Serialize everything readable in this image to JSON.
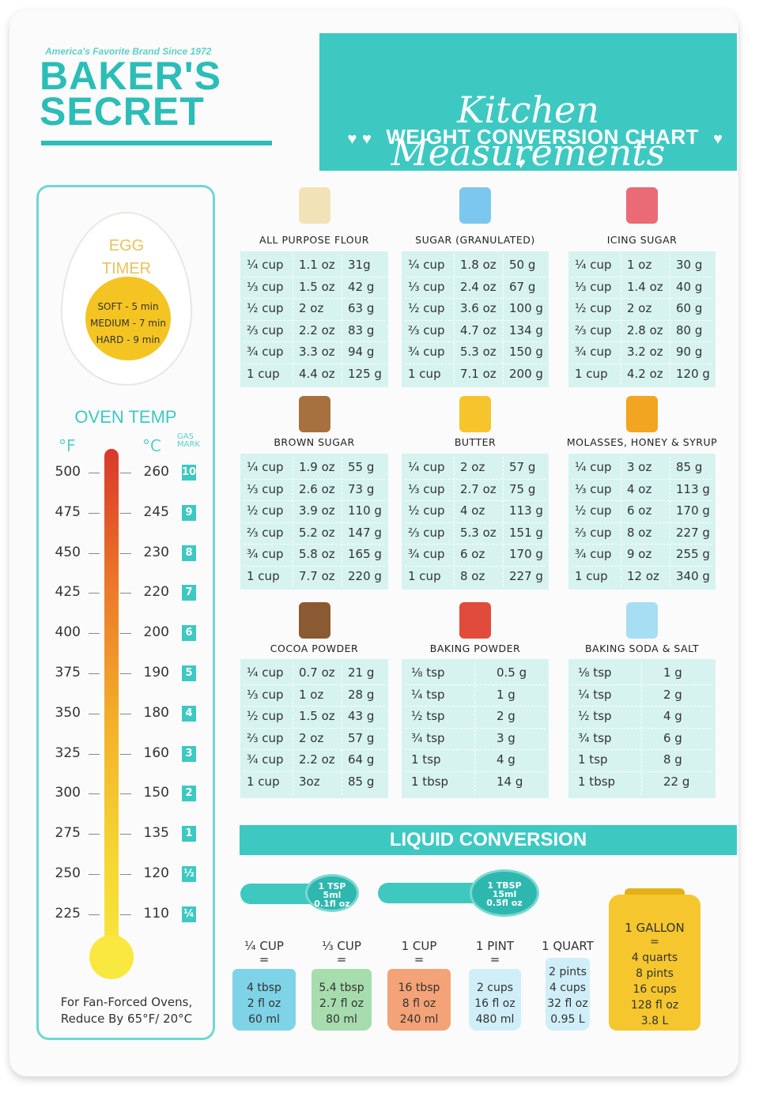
{
  "brand": {
    "tagline": "America's Favorite Brand Since 1972",
    "name_line1": "BAKER'S",
    "name_line2": "SECRET"
  },
  "header": {
    "title": "Kitchen Measurements",
    "subtitle": "WEIGHT CONVERSION CHART",
    "hearts": "♥ ♥"
  },
  "egg_timer": {
    "title_line1": "EGG",
    "title_line2": "TIMER",
    "soft": "SOFT - 5 min",
    "medium": "MEDIUM - 7 min",
    "hard": "HARD - 9 min"
  },
  "oven": {
    "title": "OVEN TEMP",
    "unit_f": "°F",
    "unit_c": "°C",
    "unit_gas": "GAS MARK",
    "rows": [
      {
        "f": "500",
        "c": "260",
        "gas": "10"
      },
      {
        "f": "475",
        "c": "245",
        "gas": "9"
      },
      {
        "f": "450",
        "c": "230",
        "gas": "8"
      },
      {
        "f": "425",
        "c": "220",
        "gas": "7"
      },
      {
        "f": "400",
        "c": "200",
        "gas": "6"
      },
      {
        "f": "375",
        "c": "190",
        "gas": "5"
      },
      {
        "f": "350",
        "c": "180",
        "gas": "4"
      },
      {
        "f": "325",
        "c": "160",
        "gas": "3"
      },
      {
        "f": "300",
        "c": "150",
        "gas": "2"
      },
      {
        "f": "275",
        "c": "135",
        "gas": "1"
      },
      {
        "f": "250",
        "c": "120",
        "gas": "½"
      },
      {
        "f": "225",
        "c": "110",
        "gas": "¼"
      }
    ],
    "note_line1": "For Fan-Forced Ovens,",
    "note_line2": "Reduce By 65°F/ 20°C"
  },
  "sections": [
    {
      "title": "ALL PURPOSE FLOUR",
      "icon": "flour-bag-icon",
      "rows": [
        [
          "¼ cup",
          "1.1 oz",
          "31g"
        ],
        [
          "⅓ cup",
          "1.5 oz",
          "42 g"
        ],
        [
          "½ cup",
          "2 oz",
          "63 g"
        ],
        [
          "⅔ cup",
          "2.2 oz",
          "83 g"
        ],
        [
          "¾ cup",
          "3.3 oz",
          "94 g"
        ],
        [
          "1 cup",
          "4.4 oz",
          "125 g"
        ]
      ]
    },
    {
      "title": "SUGAR (GRANULATED)",
      "icon": "sugar-box-icon",
      "rows": [
        [
          "¼ cup",
          "1.8 oz",
          "50 g"
        ],
        [
          "⅓ cup",
          "2.4 oz",
          "67 g"
        ],
        [
          "½ cup",
          "3.6 oz",
          "100 g"
        ],
        [
          "⅔ cup",
          "4.7 oz",
          "134 g"
        ],
        [
          "¾ cup",
          "5.3 oz",
          "150 g"
        ],
        [
          "1 cup",
          "7.1 oz",
          "200 g"
        ]
      ]
    },
    {
      "title": "ICING SUGAR",
      "icon": "icing-sugar-box-icon",
      "rows": [
        [
          "¼ cup",
          "1 oz",
          "30 g"
        ],
        [
          "⅓ cup",
          "1.4 oz",
          "40 g"
        ],
        [
          "½ cup",
          "2 oz",
          "60 g"
        ],
        [
          "⅔ cup",
          "2.8 oz",
          "80 g"
        ],
        [
          "¾ cup",
          "3.2 oz",
          "90 g"
        ],
        [
          "1 cup",
          "4.2 oz",
          "120 g"
        ]
      ]
    },
    {
      "title": "BROWN SUGAR",
      "icon": "brown-sugar-bag-icon",
      "rows": [
        [
          "¼ cup",
          "1.9 oz",
          "55 g"
        ],
        [
          "⅓ cup",
          "2.6 oz",
          "73 g"
        ],
        [
          "½ cup",
          "3.9 oz",
          "110 g"
        ],
        [
          "⅔ cup",
          "5.2 oz",
          "147 g"
        ],
        [
          "¾ cup",
          "5.8 oz",
          "165 g"
        ],
        [
          "1 cup",
          "7.7 oz",
          "220 g"
        ]
      ]
    },
    {
      "title": "BUTTER",
      "icon": "butter-block-icon",
      "rows": [
        [
          "¼ cup",
          "2 oz",
          "57 g"
        ],
        [
          "⅓ cup",
          "2.7 oz",
          "75 g"
        ],
        [
          "½ cup",
          "4 oz",
          "113 g"
        ],
        [
          "⅔ cup",
          "5.3 oz",
          "151 g"
        ],
        [
          "¾ cup",
          "6 oz",
          "170 g"
        ],
        [
          "1 cup",
          "8 oz",
          "227 g"
        ]
      ]
    },
    {
      "title": "MOLASSES, HONEY & SYRUP",
      "icon": "honey-jar-icon",
      "rows": [
        [
          "¼ cup",
          "3 oz",
          "85 g"
        ],
        [
          "⅓ cup",
          "4 oz",
          "113 g"
        ],
        [
          "½ cup",
          "6 oz",
          "170 g"
        ],
        [
          "⅔ cup",
          "8 oz",
          "227 g"
        ],
        [
          "¾ cup",
          "9 oz",
          "255 g"
        ],
        [
          "1 cup",
          "12 oz",
          "340 g"
        ]
      ]
    },
    {
      "title": "COCOA POWDER",
      "icon": "cocoa-bag-icon",
      "rows": [
        [
          "¼ cup",
          "0.7 oz",
          "21 g"
        ],
        [
          "⅓ cup",
          "1 oz",
          "28 g"
        ],
        [
          "½ cup",
          "1.5 oz",
          "43 g"
        ],
        [
          "⅔ cup",
          "2 oz",
          "57 g"
        ],
        [
          "¾ cup",
          "2.2 oz",
          "64 g"
        ],
        [
          "1 cup",
          "3oz",
          "85 g"
        ]
      ]
    },
    {
      "title": "BAKING POWDER",
      "icon": "baking-powder-can-icon",
      "rows": [
        [
          "⅛ tsp",
          "0.5 g"
        ],
        [
          "¼ tsp",
          "1 g"
        ],
        [
          "½ tsp",
          "2 g"
        ],
        [
          "¾ tsp",
          "3 g"
        ],
        [
          "1 tsp",
          "4 g"
        ],
        [
          "1 tbsp",
          "14 g"
        ]
      ]
    },
    {
      "title": "BAKING SODA & SALT",
      "icon": "baking-soda-box-icon",
      "rows": [
        [
          "⅛ tsp",
          "1 g"
        ],
        [
          "¼ tsp",
          "2 g"
        ],
        [
          "½ tsp",
          "4 g"
        ],
        [
          "¾ tsp",
          "6 g"
        ],
        [
          "1 tsp",
          "8 g"
        ],
        [
          "1 tbsp",
          "22 g"
        ]
      ]
    }
  ],
  "liquid": {
    "title": "LIQUID CONVERSION",
    "tsp": {
      "line1": "1 TSP",
      "line2": "5ml",
      "line3": "0.1fl oz"
    },
    "tbsp": {
      "line1": "1 TBSP",
      "line2": "15ml",
      "line3": "0.5fl oz"
    },
    "items": [
      {
        "label": "¼ CUP",
        "eq": "=",
        "lines": [
          "4 tbsp",
          "2 fl oz",
          "60 ml"
        ],
        "color": "#7fd3e6"
      },
      {
        "label": "⅓ CUP",
        "eq": "=",
        "lines": [
          "5.4 tbsp",
          "2.7 fl oz",
          "80 ml"
        ],
        "color": "#a6dcae"
      },
      {
        "label": "1 CUP",
        "eq": "=",
        "lines": [
          "16 tbsp",
          "8 fl oz",
          "240 ml"
        ],
        "color": "#f4a277"
      },
      {
        "label": "1 PINT",
        "eq": "=",
        "lines": [
          "2 cups",
          "16 fl oz",
          "480 ml"
        ],
        "color": "#cfeef8"
      },
      {
        "label": "1 QUART",
        "eq": "=",
        "lines": [
          "2 pints",
          "4 cups",
          "32 fl oz",
          "0.95 L"
        ],
        "color": "#cfeef8"
      }
    ],
    "gallon": {
      "label": "1 GALLON",
      "eq": "=",
      "lines": [
        "4 quarts",
        "8 pints",
        "16 cups",
        "128 fl oz",
        "3.8 L"
      ]
    }
  }
}
